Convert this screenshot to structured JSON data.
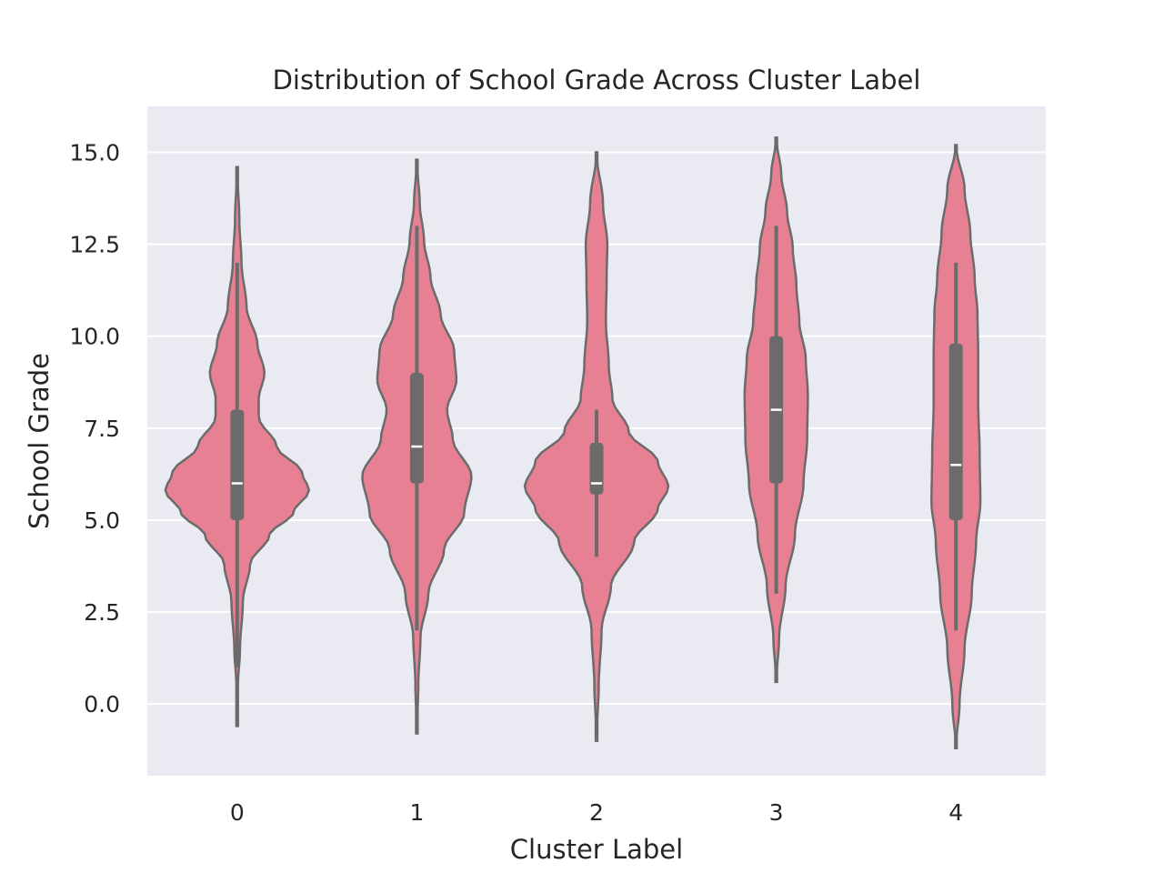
{
  "chart_data": {
    "type": "violin",
    "title": "Distribution of School Grade Across Cluster Label",
    "xlabel": "Cluster Label",
    "ylabel": "School Grade",
    "categories": [
      "0",
      "1",
      "2",
      "3",
      "4"
    ],
    "ylim": [
      -1.95,
      16.25
    ],
    "yticks": [
      0.0,
      2.5,
      5.0,
      7.5,
      10.0,
      12.5,
      15.0
    ],
    "ytick_labels": [
      "0.0",
      "2.5",
      "5.0",
      "7.5",
      "10.0",
      "12.5",
      "15.0"
    ],
    "grid": true,
    "colors": {
      "background": "#eaeaf2",
      "grid": "#ffffff",
      "violin_fill": "#e88093",
      "violin_edge": "#6b6b6b",
      "box": "#6b6b6b",
      "median": "#ffffff"
    },
    "violins": [
      {
        "category": "0",
        "min": 1.0,
        "q1": 5.0,
        "median": 6.0,
        "q3": 8.0,
        "max": 12.0,
        "density": [
          [
            -0.6,
            0.0
          ],
          [
            0.5,
            0.01
          ],
          [
            1.5,
            0.04
          ],
          [
            2.8,
            0.08
          ],
          [
            3.8,
            0.18
          ],
          [
            4.6,
            0.45
          ],
          [
            5.2,
            0.78
          ],
          [
            5.8,
            1.0
          ],
          [
            6.3,
            0.9
          ],
          [
            7.0,
            0.55
          ],
          [
            7.8,
            0.3
          ],
          [
            8.3,
            0.3
          ],
          [
            9.0,
            0.38
          ],
          [
            9.8,
            0.28
          ],
          [
            10.8,
            0.13
          ],
          [
            12.0,
            0.06
          ],
          [
            13.2,
            0.03
          ],
          [
            14.6,
            0.0
          ]
        ]
      },
      {
        "category": "1",
        "min": 2.0,
        "q1": 6.0,
        "median": 7.0,
        "q3": 9.0,
        "max": 13.0,
        "density": [
          [
            -0.8,
            0.0
          ],
          [
            0.5,
            0.02
          ],
          [
            1.8,
            0.05
          ],
          [
            3.0,
            0.16
          ],
          [
            4.2,
            0.38
          ],
          [
            5.2,
            0.66
          ],
          [
            6.2,
            0.76
          ],
          [
            7.2,
            0.5
          ],
          [
            8.0,
            0.42
          ],
          [
            8.8,
            0.55
          ],
          [
            9.6,
            0.52
          ],
          [
            10.6,
            0.33
          ],
          [
            11.6,
            0.19
          ],
          [
            12.6,
            0.1
          ],
          [
            13.6,
            0.04
          ],
          [
            14.8,
            0.0
          ]
        ]
      },
      {
        "category": "2",
        "min": 4.0,
        "q1": 5.7,
        "median": 6.0,
        "q3": 7.1,
        "max": 8.0,
        "density": [
          [
            -1.0,
            0.0
          ],
          [
            0.5,
            0.03
          ],
          [
            2.0,
            0.07
          ],
          [
            3.2,
            0.2
          ],
          [
            4.4,
            0.52
          ],
          [
            5.3,
            0.85
          ],
          [
            5.9,
            1.0
          ],
          [
            6.6,
            0.85
          ],
          [
            7.4,
            0.45
          ],
          [
            8.3,
            0.22
          ],
          [
            9.2,
            0.17
          ],
          [
            10.4,
            0.13
          ],
          [
            11.5,
            0.14
          ],
          [
            12.5,
            0.15
          ],
          [
            13.6,
            0.09
          ],
          [
            15.0,
            0.0
          ]
        ]
      },
      {
        "category": "3",
        "min": 3.0,
        "q1": 6.0,
        "median": 8.0,
        "q3": 10.0,
        "max": 13.0,
        "density": [
          [
            0.6,
            0.0
          ],
          [
            1.8,
            0.04
          ],
          [
            3.2,
            0.13
          ],
          [
            4.6,
            0.26
          ],
          [
            6.0,
            0.38
          ],
          [
            7.2,
            0.43
          ],
          [
            8.4,
            0.44
          ],
          [
            9.4,
            0.41
          ],
          [
            10.4,
            0.32
          ],
          [
            11.4,
            0.28
          ],
          [
            12.4,
            0.23
          ],
          [
            13.4,
            0.15
          ],
          [
            14.4,
            0.07
          ],
          [
            15.4,
            0.0
          ]
        ]
      },
      {
        "category": "4",
        "min": 2.0,
        "q1": 5.0,
        "median": 6.5,
        "q3": 9.8,
        "max": 12.0,
        "density": [
          [
            -1.2,
            0.0
          ],
          [
            0.0,
            0.05
          ],
          [
            1.5,
            0.12
          ],
          [
            3.0,
            0.22
          ],
          [
            4.4,
            0.28
          ],
          [
            5.5,
            0.34
          ],
          [
            6.8,
            0.33
          ],
          [
            8.2,
            0.31
          ],
          [
            9.5,
            0.31
          ],
          [
            10.6,
            0.3
          ],
          [
            11.6,
            0.26
          ],
          [
            12.8,
            0.2
          ],
          [
            14.0,
            0.12
          ],
          [
            15.2,
            0.0
          ]
        ]
      }
    ]
  }
}
